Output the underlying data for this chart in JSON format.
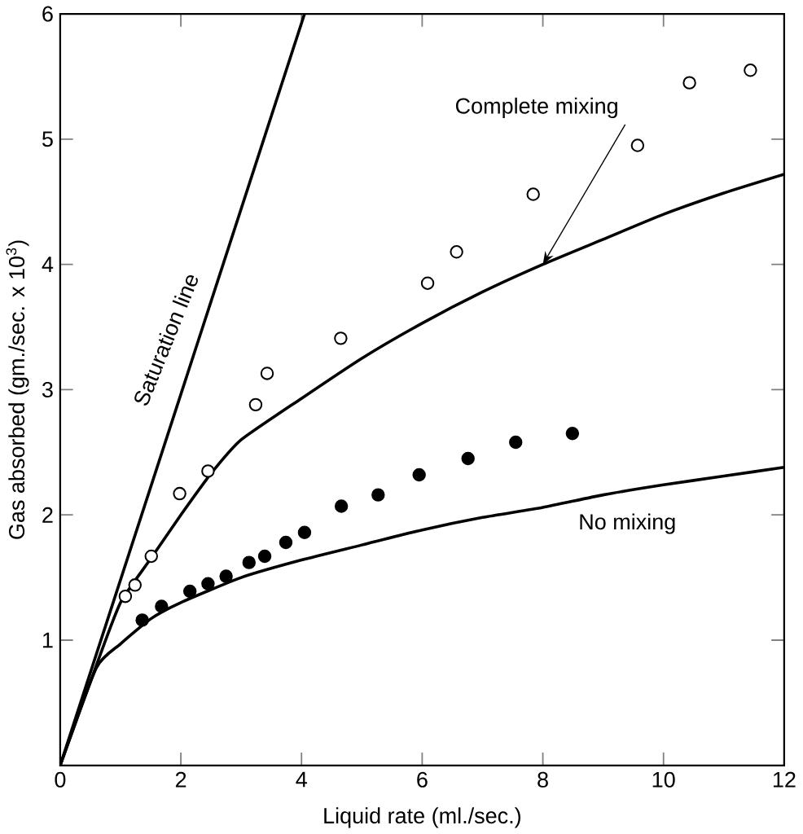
{
  "chart_data": {
    "type": "line",
    "xlabel": "Liquid rate (ml./sec.)",
    "ylabel": "Gas absorbed (gm./sec. x 10$^{3}$)",
    "xlim": [
      0,
      12
    ],
    "ylim": [
      0,
      6
    ],
    "xticks": [
      0,
      2,
      4,
      6,
      8,
      10,
      12
    ],
    "yticks": [
      {
        "value": 0,
        "label": null
      },
      1,
      2,
      3,
      4,
      5,
      6
    ],
    "grid": false,
    "marker": "none",
    "line_style": "solid",
    "series": [
      {
        "name": "Saturation line",
        "color": "#000000",
        "x": [
          0,
          4.05
        ],
        "values": [
          0,
          6
        ]
      },
      {
        "name": "Complete mixing",
        "color": "#000000",
        "x": [
          0,
          0.6,
          1,
          1.5,
          2,
          2.5,
          3,
          4,
          5,
          6,
          7,
          8,
          9,
          10,
          11,
          12
        ],
        "values": [
          0,
          0.8,
          1.3,
          1.65,
          2.0,
          2.33,
          2.6,
          2.93,
          3.25,
          3.53,
          3.78,
          4.0,
          4.2,
          4.4,
          4.57,
          4.72
        ]
      },
      {
        "name": "No mixing",
        "color": "#000000",
        "x": [
          0,
          0.6,
          1,
          1.5,
          2,
          3,
          4,
          5,
          6,
          7,
          8,
          9,
          10,
          11,
          12
        ],
        "values": [
          0,
          0.78,
          0.97,
          1.17,
          1.3,
          1.5,
          1.64,
          1.76,
          1.88,
          1.98,
          2.06,
          2.16,
          2.24,
          2.31,
          2.38
        ]
      },
      {
        "type": "scatter",
        "marker": "circle",
        "color": "#000000",
        "x": [
          1.08,
          1.24,
          1.51,
          1.98,
          2.45,
          3.24,
          3.43,
          4.65,
          6.09,
          6.57,
          7.84,
          9.57,
          10.43,
          11.44
        ],
        "values": [
          1.35,
          1.44,
          1.67,
          2.17,
          2.35,
          2.88,
          3.13,
          3.41,
          3.85,
          4.1,
          4.56,
          4.95,
          5.45,
          5.55
        ]
      },
      {
        "type": "scatter",
        "marker": "circle",
        "color": "#000000",
        "x": [
          1.36,
          1.68,
          2.15,
          2.45,
          2.75,
          3.13,
          3.39,
          3.74,
          4.05,
          4.66,
          5.27,
          5.95,
          6.76,
          7.55,
          8.49
        ],
        "values": [
          1.16,
          1.27,
          1.39,
          1.45,
          1.51,
          1.62,
          1.67,
          1.78,
          1.86,
          2.07,
          2.16,
          2.32,
          2.45,
          2.58,
          2.65
        ]
      }
    ]
  }
}
